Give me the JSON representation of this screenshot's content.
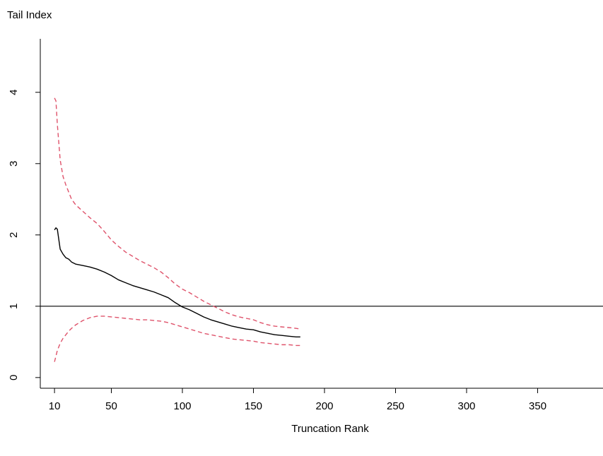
{
  "chart_data": {
    "type": "line",
    "title": "",
    "ylabel": "Tail Index",
    "xlabel": "Truncation Rank",
    "xlim": [
      0,
      396
    ],
    "ylim": [
      -0.15,
      4.75
    ],
    "x_ticks": [
      10,
      50,
      100,
      150,
      200,
      250,
      300,
      350
    ],
    "y_ticks": [
      0,
      1,
      2,
      3,
      4
    ],
    "reference_line": {
      "y": 1,
      "color": "#000000"
    },
    "grid": false,
    "legend": "none",
    "series": [
      {
        "style": "solid",
        "color": "#000000",
        "x": [
          10,
          11,
          12,
          14,
          16,
          18,
          20,
          22,
          25,
          30,
          35,
          40,
          45,
          50,
          55,
          60,
          65,
          70,
          75,
          80,
          85,
          90,
          95,
          100,
          105,
          110,
          115,
          120,
          125,
          130,
          135,
          140,
          145,
          150,
          155,
          160,
          165,
          170,
          175,
          180,
          183
        ],
        "y": [
          2.07,
          2.1,
          2.08,
          1.8,
          1.73,
          1.68,
          1.66,
          1.62,
          1.59,
          1.57,
          1.55,
          1.52,
          1.48,
          1.43,
          1.37,
          1.33,
          1.29,
          1.26,
          1.23,
          1.2,
          1.16,
          1.12,
          1.05,
          0.99,
          0.95,
          0.9,
          0.85,
          0.81,
          0.78,
          0.75,
          0.72,
          0.7,
          0.68,
          0.67,
          0.64,
          0.62,
          0.6,
          0.59,
          0.58,
          0.57,
          0.57
        ]
      },
      {
        "style": "dashed",
        "color": "#DF536B",
        "x": [
          10,
          11,
          12,
          14,
          16,
          18,
          20,
          22,
          25,
          30,
          35,
          40,
          45,
          50,
          55,
          60,
          65,
          70,
          75,
          80,
          85,
          90,
          95,
          100,
          105,
          110,
          115,
          120,
          125,
          130,
          135,
          140,
          145,
          150,
          155,
          160,
          165,
          170,
          175,
          180,
          183
        ],
        "y": [
          3.92,
          3.88,
          3.55,
          3.05,
          2.82,
          2.7,
          2.6,
          2.5,
          2.42,
          2.33,
          2.24,
          2.16,
          2.05,
          1.93,
          1.84,
          1.76,
          1.7,
          1.64,
          1.59,
          1.54,
          1.48,
          1.4,
          1.31,
          1.24,
          1.19,
          1.13,
          1.07,
          1.02,
          0.97,
          0.92,
          0.88,
          0.85,
          0.83,
          0.81,
          0.77,
          0.74,
          0.72,
          0.71,
          0.7,
          0.69,
          0.68
        ]
      },
      {
        "style": "dashed",
        "color": "#DF536B",
        "x": [
          10,
          11,
          12,
          14,
          16,
          18,
          20,
          22,
          25,
          30,
          35,
          40,
          45,
          50,
          55,
          60,
          65,
          70,
          75,
          80,
          85,
          90,
          95,
          100,
          105,
          110,
          115,
          120,
          125,
          130,
          135,
          140,
          145,
          150,
          155,
          160,
          165,
          170,
          175,
          180,
          183
        ],
        "y": [
          0.22,
          0.3,
          0.38,
          0.48,
          0.55,
          0.6,
          0.65,
          0.69,
          0.74,
          0.8,
          0.84,
          0.86,
          0.86,
          0.85,
          0.84,
          0.83,
          0.82,
          0.81,
          0.81,
          0.8,
          0.79,
          0.77,
          0.74,
          0.71,
          0.68,
          0.65,
          0.62,
          0.6,
          0.58,
          0.56,
          0.54,
          0.53,
          0.52,
          0.51,
          0.49,
          0.48,
          0.47,
          0.46,
          0.46,
          0.45,
          0.45
        ]
      }
    ]
  }
}
